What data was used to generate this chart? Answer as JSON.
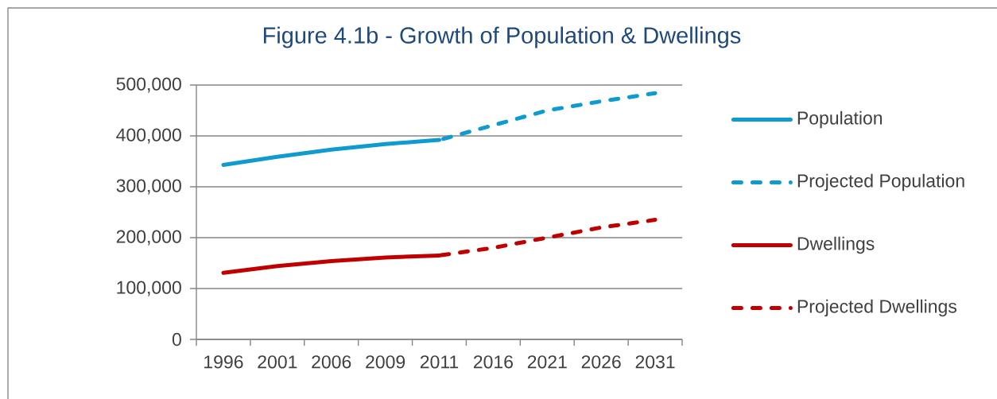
{
  "chart_data": {
    "type": "line",
    "title": "Figure 4.1b - Growth of Population & Dwellings",
    "categories": [
      "1996",
      "2001",
      "2006",
      "2009",
      "2011",
      "2016",
      "2021",
      "2026",
      "2031"
    ],
    "series": [
      {
        "name": "Population",
        "color": "#0F9BD0",
        "line_style": "solid",
        "values": [
          343000,
          359000,
          373000,
          384000,
          392000,
          null,
          null,
          null,
          null
        ]
      },
      {
        "name": "Projected Population",
        "color": "#0F9BD0",
        "line_style": "dashed",
        "values": [
          null,
          null,
          null,
          null,
          392000,
          421000,
          450000,
          468000,
          484000
        ]
      },
      {
        "name": "Dwellings",
        "color": "#C00000",
        "line_style": "solid",
        "values": [
          131000,
          144000,
          154000,
          161000,
          165000,
          null,
          null,
          null,
          null
        ]
      },
      {
        "name": "Projected Dwellings",
        "color": "#C00000",
        "line_style": "dashed",
        "values": [
          null,
          null,
          null,
          null,
          165000,
          180000,
          200000,
          220000,
          235000
        ]
      }
    ],
    "ylim": [
      0,
      500000
    ],
    "yticks": [
      0,
      {
        "value": 100000,
        "label": "100,000"
      },
      {
        "value": 200000,
        "label": "200,000"
      },
      {
        "value": 300000,
        "label": "300,000"
      },
      {
        "value": 400000,
        "label": "400,000"
      },
      {
        "value": 500000,
        "label": "500,000"
      }
    ],
    "grid": "y",
    "legend": "right",
    "marker": "none"
  }
}
